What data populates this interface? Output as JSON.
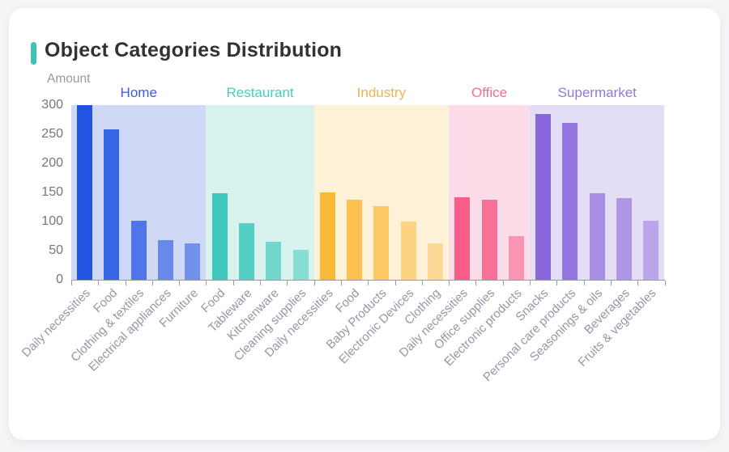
{
  "page": {
    "background_color": "#f4f5f7",
    "card_background_color": "#ffffff"
  },
  "chart": {
    "title": "Object Categories Distribution",
    "title_accent_color": "#3fc1b6",
    "ylabel": "Amount"
  },
  "chart_data": {
    "type": "bar",
    "title": "Object Categories Distribution",
    "xlabel": "",
    "ylabel": "Amount",
    "ylim": [
      0,
      300
    ],
    "y_ticks": [
      0,
      50,
      100,
      150,
      200,
      250,
      300
    ],
    "grid": false,
    "legend_position": "group-headers-top",
    "groups": [
      {
        "name": "Home",
        "color": "#2154e2",
        "label_color": "#3a5ce8",
        "band_color": "#cfd9f6",
        "categories": [
          "Daily necessities",
          "Food",
          "Clothing & textiles",
          "Electrical appliances",
          "Furniture"
        ],
        "values": [
          300,
          258,
          102,
          68,
          63
        ],
        "alphas": [
          1,
          0.88,
          0.74,
          0.6,
          0.54
        ]
      },
      {
        "name": "Restaurant",
        "color": "#3ec8bb",
        "label_color": "#42cfc0",
        "band_color": "#d8f2ee",
        "categories": [
          "Food",
          "Tableware",
          "Kitchenware",
          "Cleaning supplies"
        ],
        "values": [
          148,
          97,
          65,
          51
        ],
        "alphas": [
          1,
          0.85,
          0.65,
          0.52
        ]
      },
      {
        "name": "Industry",
        "color": "#fbb93a",
        "label_color": "#f0b350",
        "band_color": "#fdf2d8",
        "categories": [
          "Daily necessities",
          "Food",
          "Baby Products",
          "Electronic Devices",
          "Clothing"
        ],
        "values": [
          150,
          138,
          126,
          100,
          63
        ],
        "alphas": [
          1,
          0.85,
          0.72,
          0.55,
          0.42
        ]
      },
      {
        "name": "Office",
        "color": "#f75d87",
        "label_color": "#f7699a",
        "band_color": "#fcdce8",
        "categories": [
          "Daily necessities",
          "Office supplies",
          "Electronic products"
        ],
        "values": [
          142,
          138,
          75
        ],
        "alphas": [
          1,
          0.85,
          0.55
        ]
      },
      {
        "name": "Supermarket",
        "color": "#8a66dc",
        "label_color": "#9377e0",
        "band_color": "#e4ddf6",
        "categories": [
          "Snacks",
          "Personal care products",
          "Seasonings & oils",
          "Beverages",
          "Fruits & vegetables"
        ],
        "values": [
          285,
          270,
          148,
          140,
          102
        ],
        "alphas": [
          1,
          0.88,
          0.66,
          0.6,
          0.46
        ]
      }
    ]
  }
}
